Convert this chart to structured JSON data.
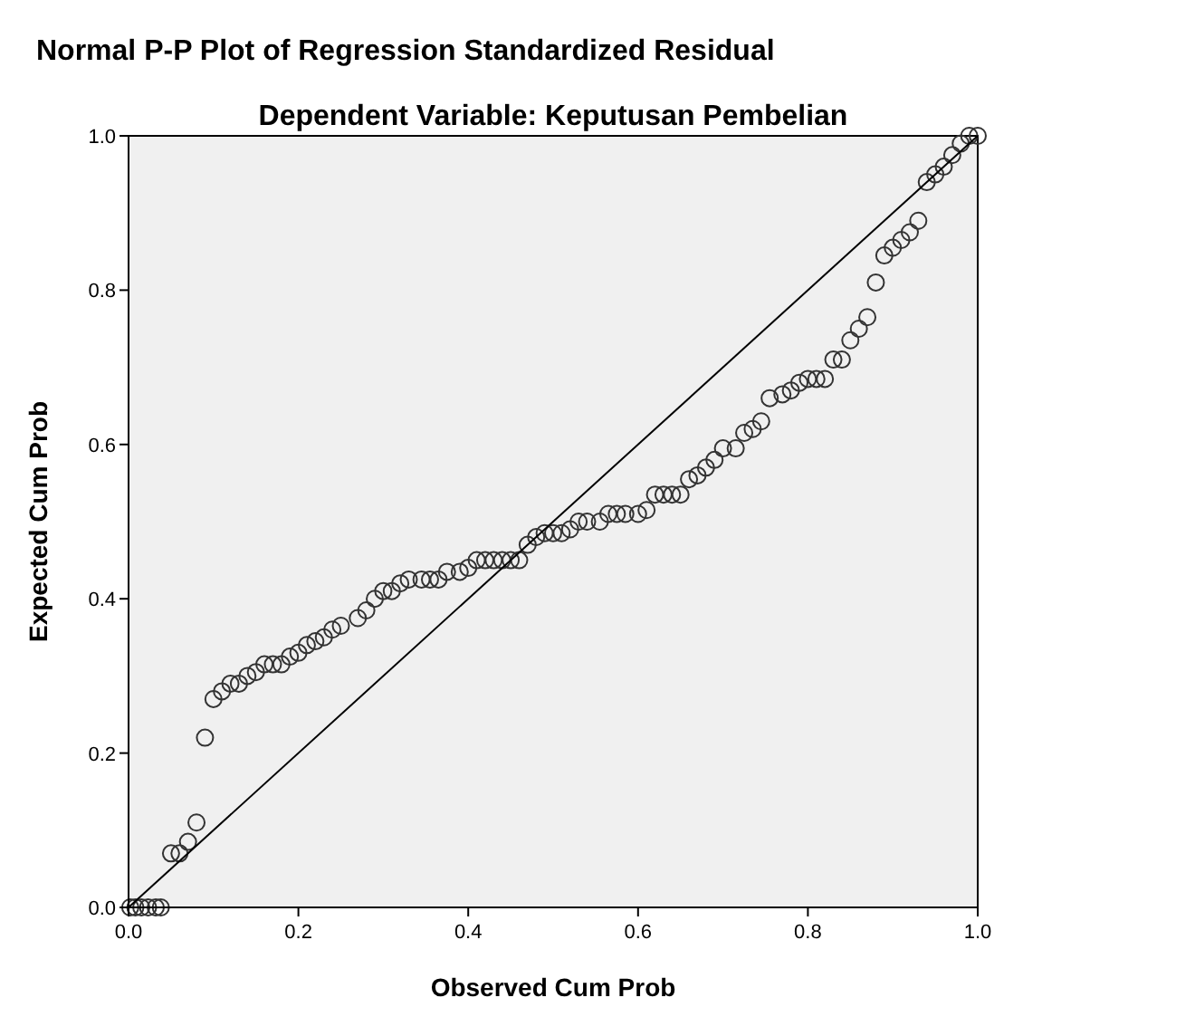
{
  "chart_data": {
    "type": "scatter",
    "title": "Normal P-P Plot of Regression Standardized Residual",
    "subtitle": "Dependent Variable: Keputusan Pembelian",
    "xlabel": "Observed Cum Prob",
    "ylabel": "Expected Cum Prob",
    "xlim": [
      0,
      1
    ],
    "ylim": [
      0,
      1
    ],
    "xticks": [
      {
        "value": 0,
        "label": "0.0"
      },
      {
        "value": 0.2,
        "label": "0.2"
      },
      {
        "value": 0.4,
        "label": "0.4"
      },
      {
        "value": 0.6,
        "label": "0.6"
      },
      {
        "value": 0.8,
        "label": "0.8"
      },
      {
        "value": 1,
        "label": "1.0"
      }
    ],
    "yticks": [
      {
        "value": 0,
        "label": "0.0"
      },
      {
        "value": 0.2,
        "label": "0.2"
      },
      {
        "value": 0.4,
        "label": "0.4"
      },
      {
        "value": 0.6,
        "label": "0.6"
      },
      {
        "value": 0.8,
        "label": "0.8"
      },
      {
        "value": 1,
        "label": "1.0"
      }
    ],
    "series": [
      {
        "marker": "circle",
        "color": "#333333",
        "x": [
          0.002,
          0.008,
          0.015,
          0.023,
          0.032,
          0.038,
          0.05,
          0.06,
          0.07,
          0.08,
          0.09,
          0.1,
          0.11,
          0.12,
          0.13,
          0.14,
          0.15,
          0.16,
          0.17,
          0.18,
          0.19,
          0.2,
          0.21,
          0.22,
          0.23,
          0.24,
          0.25,
          0.27,
          0.28,
          0.29,
          0.3,
          0.31,
          0.32,
          0.33,
          0.345,
          0.355,
          0.365,
          0.375,
          0.39,
          0.4,
          0.41,
          0.42,
          0.43,
          0.44,
          0.45,
          0.46,
          0.47,
          0.48,
          0.49,
          0.5,
          0.51,
          0.52,
          0.53,
          0.54,
          0.555,
          0.565,
          0.575,
          0.585,
          0.6,
          0.61,
          0.62,
          0.63,
          0.64,
          0.65,
          0.66,
          0.67,
          0.68,
          0.69,
          0.7,
          0.715,
          0.725,
          0.735,
          0.745,
          0.755,
          0.77,
          0.78,
          0.79,
          0.8,
          0.81,
          0.82,
          0.83,
          0.84,
          0.85,
          0.86,
          0.87,
          0.88,
          0.89,
          0.9,
          0.91,
          0.92,
          0.93,
          0.94,
          0.95,
          0.96,
          0.97,
          0.98,
          0.99,
          1.0
        ],
        "values": [
          0,
          0,
          0,
          0,
          0,
          0,
          0.07,
          0.07,
          0.085,
          0.11,
          0.22,
          0.27,
          0.28,
          0.29,
          0.29,
          0.3,
          0.305,
          0.315,
          0.315,
          0.315,
          0.325,
          0.33,
          0.34,
          0.345,
          0.35,
          0.36,
          0.365,
          0.375,
          0.385,
          0.4,
          0.41,
          0.41,
          0.42,
          0.425,
          0.425,
          0.425,
          0.425,
          0.435,
          0.435,
          0.44,
          0.45,
          0.45,
          0.45,
          0.45,
          0.45,
          0.45,
          0.47,
          0.48,
          0.485,
          0.485,
          0.485,
          0.49,
          0.5,
          0.5,
          0.5,
          0.51,
          0.51,
          0.51,
          0.51,
          0.515,
          0.535,
          0.535,
          0.535,
          0.535,
          0.555,
          0.56,
          0.57,
          0.58,
          0.595,
          0.595,
          0.615,
          0.62,
          0.63,
          0.66,
          0.665,
          0.67,
          0.68,
          0.685,
          0.685,
          0.685,
          0.71,
          0.71,
          0.735,
          0.75,
          0.765,
          0.81,
          0.845,
          0.855,
          0.865,
          0.875,
          0.89,
          0.94,
          0.95,
          0.96,
          0.975,
          0.99,
          1.0,
          1.0
        ]
      },
      {
        "type": "line",
        "marker": "none",
        "color": "#000000",
        "x": [
          0,
          1
        ],
        "values": [
          0,
          1
        ]
      }
    ]
  }
}
